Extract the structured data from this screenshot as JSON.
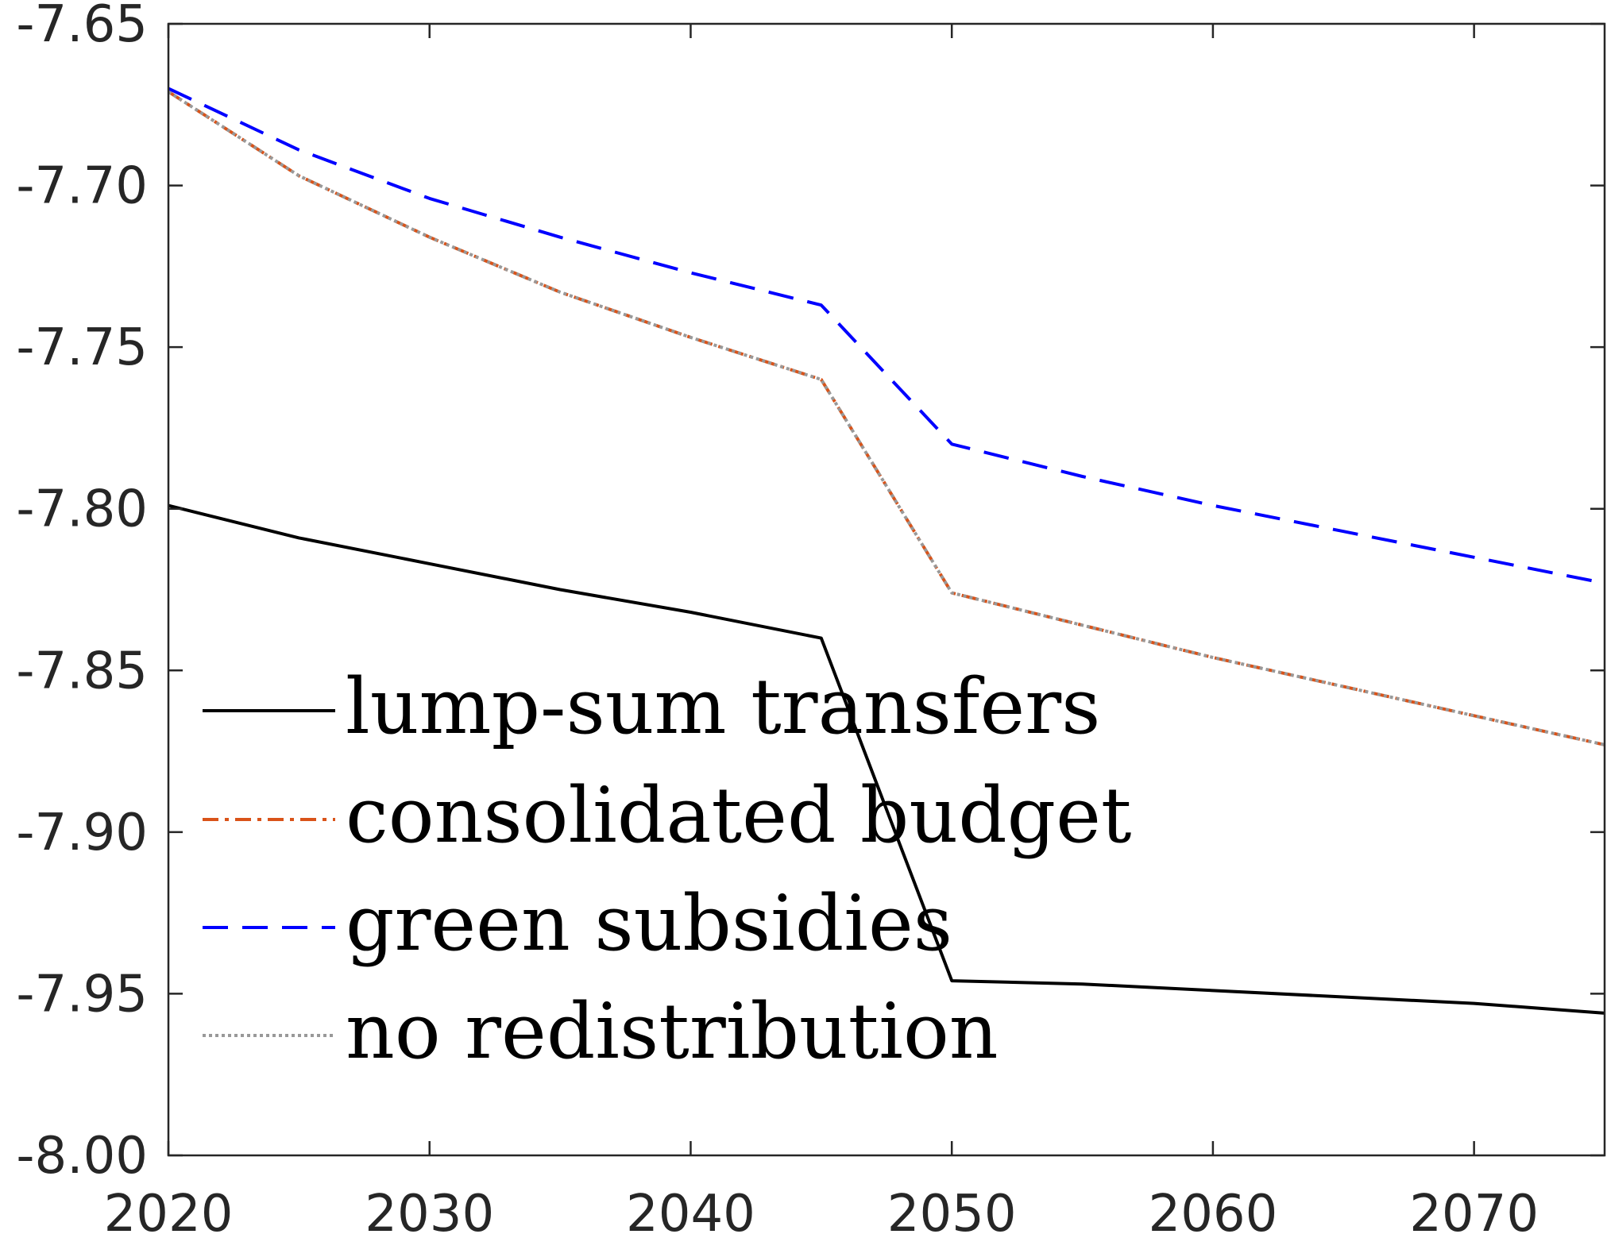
{
  "chart_data": {
    "type": "line",
    "title": "",
    "xlabel": "",
    "ylabel": "",
    "xlim": [
      2020,
      2075
    ],
    "ylim": [
      -8.0,
      -7.65
    ],
    "x_ticks": [
      2020,
      2030,
      2040,
      2050,
      2060,
      2070
    ],
    "x_tick_labels": [
      "2020",
      "2030",
      "2040",
      "2050",
      "2060",
      "2070"
    ],
    "y_ticks": [
      -7.65,
      -7.7,
      -7.75,
      -7.8,
      -7.85,
      -7.9,
      -7.95,
      -8.0
    ],
    "y_tick_labels": [
      "-7.65",
      "-7.70",
      "-7.75",
      "-7.80",
      "-7.85",
      "-7.90",
      "-7.95",
      "-8.00"
    ],
    "grid": false,
    "legend_position": "lower-left",
    "series": [
      {
        "name": "lump-sum transfers",
        "color": "#000000",
        "style": "solid",
        "x": [
          2020,
          2025,
          2030,
          2035,
          2040,
          2045,
          2050,
          2055,
          2060,
          2065,
          2070,
          2075
        ],
        "y": [
          -7.799,
          -7.809,
          -7.817,
          -7.825,
          -7.832,
          -7.84,
          -7.946,
          -7.947,
          -7.949,
          -7.951,
          -7.953,
          -7.956
        ]
      },
      {
        "name": "consolidated budget",
        "color": "#D95319",
        "style": "dashdot",
        "x": [
          2020,
          2025,
          2030,
          2035,
          2040,
          2045,
          2050,
          2055,
          2060,
          2065,
          2070,
          2075
        ],
        "y": [
          -7.671,
          -7.697,
          -7.716,
          -7.733,
          -7.747,
          -7.76,
          -7.826,
          -7.836,
          -7.846,
          -7.855,
          -7.864,
          -7.873
        ]
      },
      {
        "name": "green subsidies",
        "color": "#0000FF",
        "style": "dashed",
        "x": [
          2020,
          2025,
          2030,
          2035,
          2040,
          2045,
          2050,
          2055,
          2060,
          2065,
          2070,
          2075
        ],
        "y": [
          -7.67,
          -7.689,
          -7.704,
          -7.716,
          -7.727,
          -7.737,
          -7.78,
          -7.79,
          -7.799,
          -7.807,
          -7.815,
          -7.823
        ]
      },
      {
        "name": "no redistribution",
        "color": "#999999",
        "style": "dotted",
        "x": [
          2020,
          2025,
          2030,
          2035,
          2040,
          2045,
          2050,
          2055,
          2060,
          2065,
          2070,
          2075
        ],
        "y": [
          -7.671,
          -7.697,
          -7.716,
          -7.733,
          -7.747,
          -7.76,
          -7.826,
          -7.836,
          -7.846,
          -7.855,
          -7.864,
          -7.873
        ]
      }
    ]
  }
}
